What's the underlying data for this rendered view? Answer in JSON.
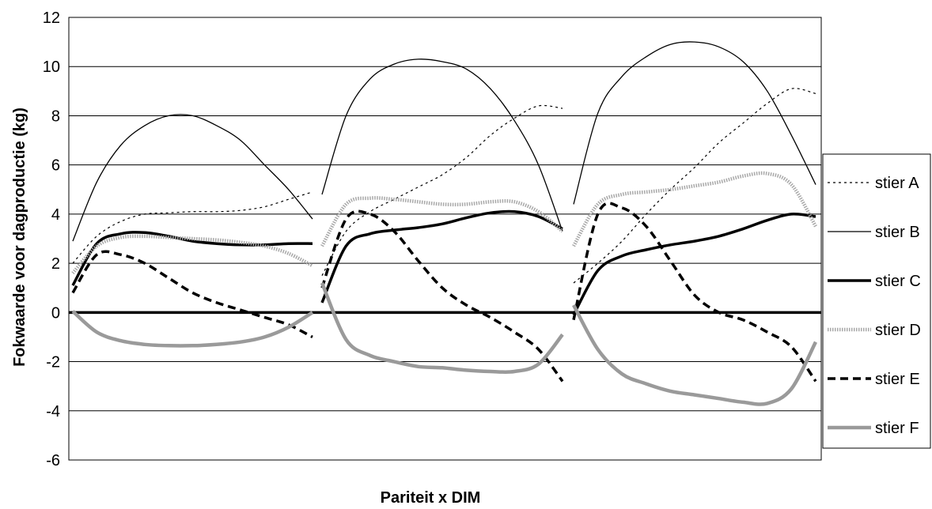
{
  "chart_data": {
    "type": "line",
    "title": "",
    "xlabel": "Pariteit x DIM",
    "ylabel": "Fokwaarde voor dagproductie (kg)",
    "ylim": [
      -6,
      12
    ],
    "yticks": [
      -6,
      -4,
      -2,
      0,
      2,
      4,
      6,
      8,
      10,
      12
    ],
    "ytick_labels": [
      "-6",
      "-4",
      "-2",
      "0",
      "2",
      "4",
      "6",
      "8",
      "10",
      "12"
    ],
    "grid": "horizontal",
    "legend_position": "right",
    "parities": 3,
    "x_per_parity": [
      0,
      0.1,
      0.2,
      0.3,
      0.4,
      0.5,
      0.6,
      0.7,
      0.8,
      0.9,
      1.0
    ],
    "series": [
      {
        "name": "stier A",
        "style": "dotted-thin",
        "color": "#000000",
        "values": [
          [
            2.0,
            3.1,
            3.7,
            4.0,
            4.05,
            4.1,
            4.1,
            4.15,
            4.3,
            4.6,
            4.9
          ],
          [
            1.5,
            3.3,
            4.1,
            4.6,
            5.1,
            5.6,
            6.3,
            7.2,
            7.9,
            8.4,
            8.3
          ],
          [
            1.2,
            2.0,
            2.9,
            4.0,
            5.0,
            5.9,
            6.9,
            7.7,
            8.5,
            9.1,
            8.9
          ]
        ]
      },
      {
        "name": "stier B",
        "style": "solid-thin",
        "color": "#000000",
        "values": [
          [
            2.9,
            5.3,
            6.8,
            7.6,
            8.0,
            8.0,
            7.6,
            7.0,
            6.0,
            5.0,
            3.8
          ],
          [
            4.8,
            8.0,
            9.5,
            10.1,
            10.3,
            10.2,
            9.9,
            9.1,
            7.8,
            6.0,
            3.3
          ],
          [
            4.4,
            8.1,
            9.6,
            10.4,
            10.9,
            11.0,
            10.8,
            10.2,
            9.0,
            7.2,
            5.2
          ]
        ]
      },
      {
        "name": "stier C",
        "style": "solid-thick",
        "color": "#000000",
        "values": [
          [
            1.1,
            2.8,
            3.2,
            3.25,
            3.1,
            2.9,
            2.8,
            2.75,
            2.75,
            2.8,
            2.8
          ],
          [
            0.4,
            2.7,
            3.2,
            3.35,
            3.45,
            3.6,
            3.85,
            4.05,
            4.1,
            3.9,
            3.4
          ],
          [
            -0.1,
            1.7,
            2.3,
            2.55,
            2.75,
            2.9,
            3.1,
            3.4,
            3.75,
            4.0,
            3.9
          ]
        ]
      },
      {
        "name": "stier D",
        "style": "dotted-thick-gray",
        "color": "#aaaaaa",
        "values": [
          [
            1.6,
            2.7,
            3.05,
            3.1,
            3.05,
            3.0,
            2.95,
            2.85,
            2.7,
            2.4,
            1.9
          ],
          [
            2.7,
            4.4,
            4.65,
            4.6,
            4.5,
            4.4,
            4.4,
            4.5,
            4.5,
            4.1,
            3.3
          ],
          [
            2.7,
            4.4,
            4.8,
            4.9,
            5.0,
            5.15,
            5.3,
            5.55,
            5.65,
            5.2,
            3.5
          ]
        ]
      },
      {
        "name": "stier E",
        "style": "dashed-thick",
        "color": "#000000",
        "values": [
          [
            0.8,
            2.35,
            2.35,
            2.0,
            1.4,
            0.8,
            0.4,
            0.1,
            -0.2,
            -0.5,
            -1.0
          ],
          [
            1.0,
            3.8,
            4.0,
            3.3,
            2.1,
            1.0,
            0.3,
            -0.2,
            -0.8,
            -1.5,
            -2.8
          ],
          [
            -0.3,
            4.0,
            4.25,
            3.5,
            2.1,
            0.7,
            0.0,
            -0.3,
            -0.8,
            -1.4,
            -2.8
          ]
        ]
      },
      {
        "name": "stier F",
        "style": "solid-thick-gray",
        "color": "#999999",
        "values": [
          [
            0.05,
            -0.8,
            -1.15,
            -1.3,
            -1.35,
            -1.35,
            -1.3,
            -1.2,
            -1.0,
            -0.6,
            0.0
          ],
          [
            1.2,
            -1.1,
            -1.75,
            -2.0,
            -2.2,
            -2.25,
            -2.35,
            -2.4,
            -2.4,
            -2.1,
            -0.9
          ],
          [
            0.3,
            -1.5,
            -2.5,
            -2.9,
            -3.2,
            -3.35,
            -3.5,
            -3.65,
            -3.7,
            -3.1,
            -1.2
          ]
        ]
      }
    ]
  }
}
